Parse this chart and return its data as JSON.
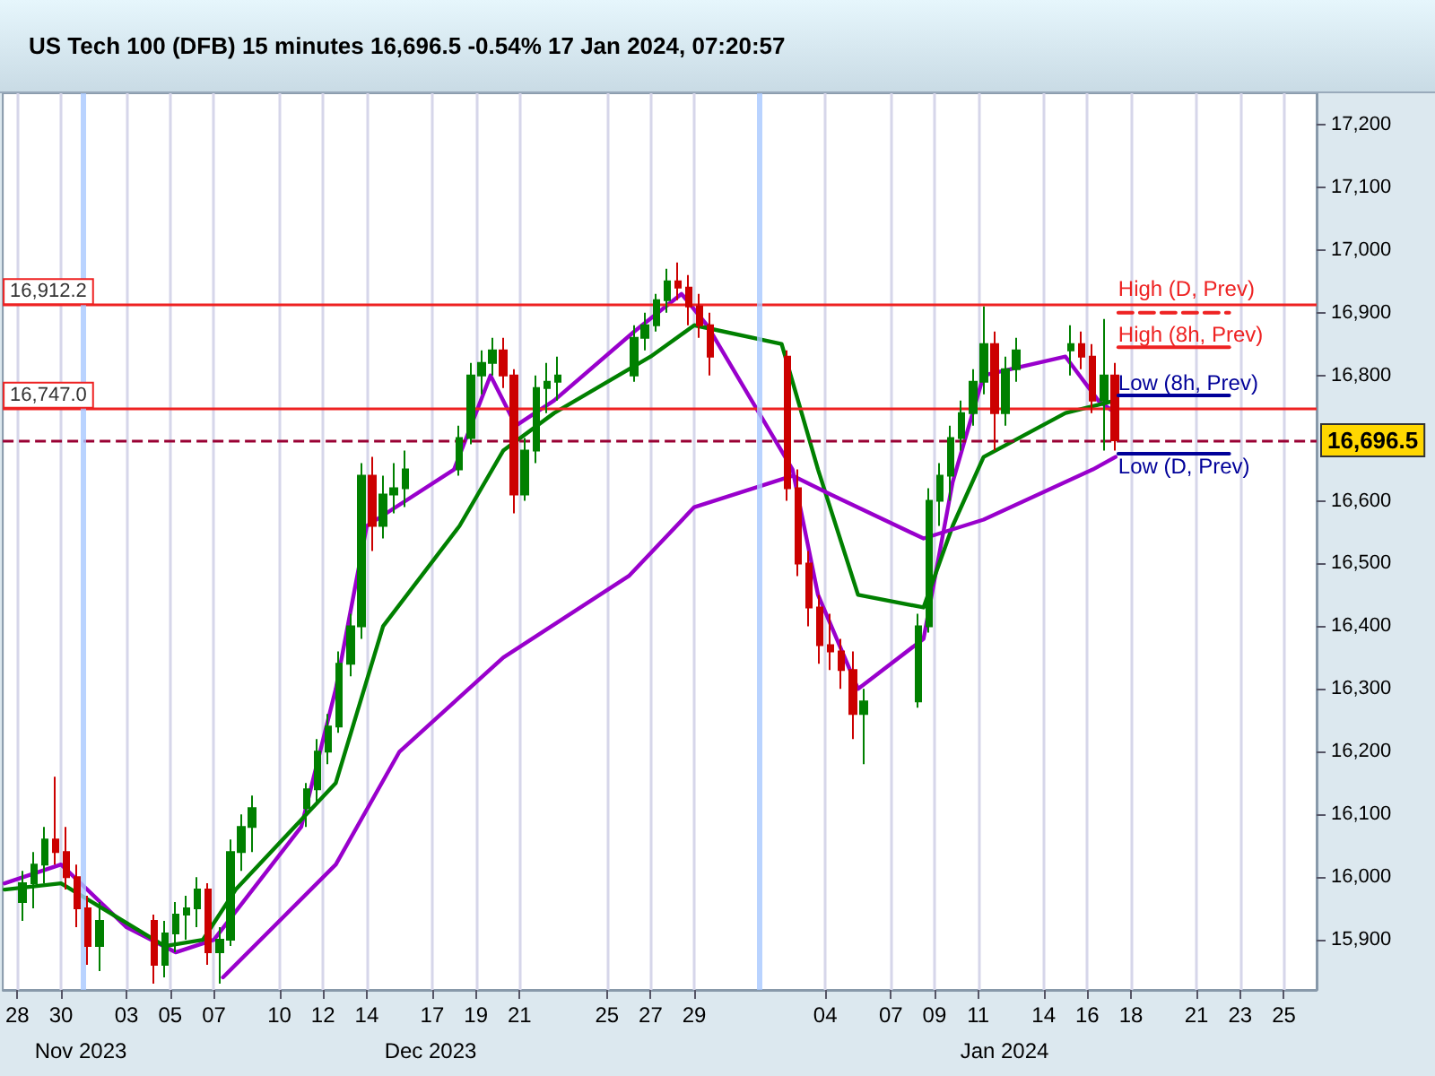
{
  "chart_data": {
    "type": "candlestick",
    "title": "US Tech 100 (DFB) 15 minutes 16,696.5 -0.54% 17 Jan 2024, 07:20:57",
    "x": [
      "2023-11-28T06:00",
      "2023-11-28T18:00",
      "2023-11-29T06:00",
      "2023-11-29T18:00",
      "2023-11-30T06:00",
      "2023-11-30T18:00",
      "2023-12-01T06:00",
      "2023-12-01T18:00",
      "2023-12-04T06:00",
      "2023-12-04T18:00",
      "2023-12-05T06:00",
      "2023-12-05T18:00",
      "2023-12-06T06:00",
      "2023-12-06T18:00",
      "2023-12-07T06:00",
      "2023-12-07T18:00",
      "2023-12-08T06:00",
      "2023-12-08T18:00",
      "2023-12-11T06:00",
      "2023-12-11T18:00",
      "2023-12-12T06:00",
      "2023-12-12T18:00",
      "2023-12-13T06:00",
      "2023-12-13T18:00",
      "2023-12-14T06:00",
      "2023-12-14T18:00",
      "2023-12-15T06:00",
      "2023-12-15T18:00",
      "2023-12-18T06:00",
      "2023-12-18T18:00",
      "2023-12-19T06:00",
      "2023-12-19T18:00",
      "2023-12-20T06:00",
      "2023-12-20T18:00",
      "2023-12-21T06:00",
      "2023-12-21T18:00",
      "2023-12-22T06:00",
      "2023-12-22T18:00",
      "2023-12-26T06:00",
      "2023-12-26T18:00",
      "2023-12-27T06:00",
      "2023-12-27T18:00",
      "2023-12-28T06:00",
      "2023-12-28T18:00",
      "2023-12-29T06:00",
      "2023-12-29T18:00",
      "2024-01-02T06:00",
      "2024-01-02T18:00",
      "2024-01-03T06:00",
      "2024-01-03T18:00",
      "2024-01-04T06:00",
      "2024-01-04T18:00",
      "2024-01-05T06:00",
      "2024-01-05T18:00",
      "2024-01-08T06:00",
      "2024-01-08T18:00",
      "2024-01-09T06:00",
      "2024-01-09T18:00",
      "2024-01-10T06:00",
      "2024-01-10T18:00",
      "2024-01-11T06:00",
      "2024-01-11T18:00",
      "2024-01-12T06:00",
      "2024-01-12T18:00",
      "2024-01-15T06:00",
      "2024-01-15T18:00",
      "2024-01-16T06:00",
      "2024-01-16T18:00",
      "2024-01-17T06:00"
    ],
    "ohlc": [
      [
        15960,
        16010,
        15930,
        15990
      ],
      [
        15990,
        16040,
        15950,
        16020
      ],
      [
        16020,
        16080,
        15990,
        16060
      ],
      [
        16060,
        16160,
        16020,
        16040
      ],
      [
        16040,
        16080,
        15980,
        16000
      ],
      [
        16000,
        16020,
        15920,
        15950
      ],
      [
        15950,
        15970,
        15860,
        15890
      ],
      [
        15890,
        15960,
        15850,
        15930
      ],
      [
        15930,
        15940,
        15830,
        15860
      ],
      [
        15860,
        15930,
        15840,
        15910
      ],
      [
        15910,
        15960,
        15880,
        15940
      ],
      [
        15940,
        15970,
        15900,
        15950
      ],
      [
        15950,
        16000,
        15920,
        15980
      ],
      [
        15980,
        15990,
        15860,
        15880
      ],
      [
        15880,
        15920,
        15830,
        15900
      ],
      [
        15900,
        16060,
        15890,
        16040
      ],
      [
        16040,
        16100,
        16010,
        16080
      ],
      [
        16080,
        16130,
        16040,
        16110
      ],
      [
        16110,
        16150,
        16080,
        16140
      ],
      [
        16140,
        16220,
        16120,
        16200
      ],
      [
        16200,
        16260,
        16180,
        16240
      ],
      [
        16240,
        16360,
        16230,
        16340
      ],
      [
        16340,
        16420,
        16320,
        16400
      ],
      [
        16400,
        16660,
        16380,
        16640
      ],
      [
        16640,
        16670,
        16520,
        16560
      ],
      [
        16560,
        16640,
        16540,
        16610
      ],
      [
        16610,
        16660,
        16580,
        16620
      ],
      [
        16620,
        16680,
        16590,
        16650
      ],
      [
        16650,
        16720,
        16640,
        16700
      ],
      [
        16700,
        16820,
        16690,
        16800
      ],
      [
        16800,
        16840,
        16770,
        16820
      ],
      [
        16820,
        16860,
        16800,
        16840
      ],
      [
        16840,
        16860,
        16780,
        16800
      ],
      [
        16800,
        16810,
        16580,
        16610
      ],
      [
        16610,
        16700,
        16600,
        16680
      ],
      [
        16680,
        16800,
        16660,
        16780
      ],
      [
        16780,
        16820,
        16740,
        16790
      ],
      [
        16790,
        16830,
        16760,
        16800
      ],
      [
        16800,
        16880,
        16790,
        16860
      ],
      [
        16860,
        16900,
        16840,
        16880
      ],
      [
        16880,
        16930,
        16870,
        16920
      ],
      [
        16920,
        16970,
        16900,
        16950
      ],
      [
        16950,
        16980,
        16920,
        16940
      ],
      [
        16940,
        16960,
        16880,
        16910
      ],
      [
        16910,
        16930,
        16860,
        16880
      ],
      [
        16880,
        16900,
        16800,
        16830
      ],
      [
        16830,
        16840,
        16600,
        16620
      ],
      [
        16620,
        16650,
        16480,
        16500
      ],
      [
        16500,
        16520,
        16400,
        16430
      ],
      [
        16430,
        16450,
        16340,
        16370
      ],
      [
        16370,
        16420,
        16330,
        16360
      ],
      [
        16360,
        16380,
        16300,
        16330
      ],
      [
        16330,
        16360,
        16220,
        16260
      ],
      [
        16260,
        16300,
        16180,
        16280
      ],
      [
        16280,
        16420,
        16270,
        16400
      ],
      [
        16400,
        16620,
        16390,
        16600
      ],
      [
        16600,
        16660,
        16560,
        16640
      ],
      [
        16640,
        16720,
        16600,
        16700
      ],
      [
        16700,
        16760,
        16680,
        16740
      ],
      [
        16740,
        16810,
        16720,
        16790
      ],
      [
        16790,
        16910,
        16770,
        16850
      ],
      [
        16850,
        16870,
        16680,
        16740
      ],
      [
        16740,
        16830,
        16720,
        16810
      ],
      [
        16810,
        16860,
        16790,
        16840
      ],
      [
        16840,
        16880,
        16800,
        16850
      ],
      [
        16850,
        16870,
        16810,
        16830
      ],
      [
        16830,
        16850,
        16740,
        16760
      ],
      [
        16760,
        16890,
        16680,
        16800
      ],
      [
        16800,
        16820,
        16680,
        16696.5
      ]
    ],
    "colors": [
      "#008000",
      "#008000",
      "#008000",
      "#cc0000",
      "#cc0000",
      "#cc0000",
      "#cc0000",
      "#008000",
      "#cc0000",
      "#008000",
      "#008000",
      "#008000",
      "#008000",
      "#cc0000",
      "#008000",
      "#008000",
      "#008000",
      "#008000",
      "#008000",
      "#008000",
      "#008000",
      "#008000",
      "#008000",
      "#008000",
      "#cc0000",
      "#008000",
      "#008000",
      "#008000",
      "#008000",
      "#008000",
      "#008000",
      "#008000",
      "#cc0000",
      "#cc0000",
      "#008000",
      "#008000",
      "#008000",
      "#008000",
      "#008000",
      "#008000",
      "#008000",
      "#008000",
      "#cc0000",
      "#cc0000",
      "#cc0000",
      "#cc0000",
      "#cc0000",
      "#cc0000",
      "#cc0000",
      "#cc0000",
      "#cc0000",
      "#cc0000",
      "#cc0000",
      "#008000",
      "#008000",
      "#008000",
      "#008000",
      "#008000",
      "#008000",
      "#008000",
      "#008000",
      "#cc0000",
      "#008000",
      "#008000",
      "#008000",
      "#cc0000",
      "#cc0000",
      "#008000",
      "#cc0000"
    ],
    "series": [
      {
        "type": "line",
        "color": "#9900cc",
        "x": [
          "2023-11-27T10:00",
          "2023-11-30T00:00",
          "2023-12-03T00:00",
          "2023-12-05T06:00",
          "2023-12-07T00:00",
          "2023-12-11T00:00",
          "2023-12-12T14:00",
          "2023-12-14T00:00",
          "2023-12-18T00:00",
          "2023-12-19T16:00",
          "2023-12-20T20:00",
          "2023-12-22T14:00",
          "2023-12-26T06:00",
          "2023-12-28T10:00",
          "2023-12-29T14:00",
          "2024-01-02T12:00",
          "2024-01-03T16:00",
          "2024-01-05T12:00",
          "2024-01-08T12:00",
          "2024-01-09T20:00",
          "2024-01-11T06:00",
          "2024-01-15T00:00",
          "2024-01-16T12:00",
          "2024-01-17T07:00"
        ],
        "values": [
          15990,
          16020,
          15920,
          15880,
          15900,
          16080,
          16300,
          16560,
          16650,
          16800,
          16720,
          16760,
          16870,
          16930,
          16880,
          16650,
          16450,
          16300,
          16380,
          16630,
          16800,
          16830,
          16760,
          16740
        ]
      },
      {
        "type": "line",
        "color": "#008000",
        "x": [
          "2023-11-27T10:00",
          "2023-11-30T00:00",
          "2023-12-04T18:00",
          "2023-12-06T12:00",
          "2023-12-08T00:00",
          "2023-12-12T14:00",
          "2023-12-14T18:00",
          "2023-12-18T06:00",
          "2023-12-20T06:00",
          "2023-12-22T14:00",
          "2023-12-27T00:00",
          "2023-12-29T00:00",
          "2024-01-02T00:00",
          "2024-01-03T16:00",
          "2024-01-05T12:00",
          "2024-01-08T12:00",
          "2024-01-09T20:00",
          "2024-01-11T06:00",
          "2024-01-15T00:00",
          "2024-01-17T07:00"
        ],
        "values": [
          15980,
          15990,
          15890,
          15900,
          15980,
          16150,
          16400,
          16560,
          16680,
          16740,
          16830,
          16880,
          16850,
          16650,
          16450,
          16430,
          16560,
          16670,
          16740,
          16760
        ]
      },
      {
        "type": "line",
        "color": "#9900cc",
        "x": [
          "2023-12-07T10:00",
          "2023-12-12T14:00",
          "2023-12-15T12:00",
          "2023-12-20T06:00",
          "2023-12-26T00:00",
          "2023-12-29T00:00",
          "2024-01-02T12:00",
          "2024-01-04T06:00",
          "2024-01-08T12:00",
          "2024-01-11T06:00",
          "2024-01-16T06:00",
          "2024-01-17T07:00"
        ],
        "values": [
          15840,
          16020,
          16200,
          16350,
          16480,
          16590,
          16640,
          16610,
          16540,
          16570,
          16650,
          16670
        ]
      },
      {
        "type": "line",
        "name": "High (D, Prev)",
        "color": "#ee2222",
        "line_style": "dashed",
        "x": [
          "2024-01-17T10:00",
          "2024-01-22T12:00"
        ],
        "values": [
          16900,
          16900
        ]
      },
      {
        "type": "line",
        "name": "High (8h, Prev)",
        "color": "#ee2222",
        "x": [
          "2024-01-17T10:00",
          "2024-01-22T12:00"
        ],
        "values": [
          16845,
          16845
        ]
      },
      {
        "type": "line",
        "name": "Low (8h, Prev)",
        "color": "#000099",
        "x": [
          "2024-01-17T10:00",
          "2024-01-22T12:00"
        ],
        "values": [
          16768,
          16768
        ]
      },
      {
        "type": "line",
        "name": "Low (D, Prev)",
        "color": "#000099",
        "x": [
          "2024-01-17T10:00",
          "2024-01-22T12:00"
        ],
        "values": [
          16675,
          16675
        ]
      }
    ],
    "xlim": [
      "2023-11-27T08:00",
      "2024-01-26T12:00"
    ],
    "xticks": [
      {
        "value": "2023-11-28",
        "label": "28"
      },
      {
        "value": "2023-11-30",
        "label": "30"
      },
      {
        "value": "2023-12-03",
        "label": "03"
      },
      {
        "value": "2023-12-05",
        "label": "05"
      },
      {
        "value": "2023-12-07",
        "label": "07"
      },
      {
        "value": "2023-12-10",
        "label": "10"
      },
      {
        "value": "2023-12-12",
        "label": "12"
      },
      {
        "value": "2023-12-14",
        "label": "14"
      },
      {
        "value": "2023-12-17",
        "label": "17"
      },
      {
        "value": "2023-12-19",
        "label": "19"
      },
      {
        "value": "2023-12-21",
        "label": "21"
      },
      {
        "value": "2023-12-25",
        "label": "25"
      },
      {
        "value": "2023-12-27",
        "label": "27"
      },
      {
        "value": "2023-12-29",
        "label": "29"
      },
      {
        "value": "2024-01-04",
        "label": "04"
      },
      {
        "value": "2024-01-07",
        "label": "07"
      },
      {
        "value": "2024-01-09",
        "label": "09"
      },
      {
        "value": "2024-01-11",
        "label": "11"
      },
      {
        "value": "2024-01-14",
        "label": "14"
      },
      {
        "value": "2024-01-16",
        "label": "16"
      },
      {
        "value": "2024-01-18",
        "label": "18"
      },
      {
        "value": "2024-01-21",
        "label": "21"
      },
      {
        "value": "2024-01-23",
        "label": "23"
      },
      {
        "value": "2024-01-25",
        "label": "25"
      }
    ],
    "ylim": [
      15820,
      17250
    ],
    "yticks": [
      {
        "value": 15900,
        "label": "15,900"
      },
      {
        "value": 16000,
        "label": "16,000"
      },
      {
        "value": 16100,
        "label": "16,100"
      },
      {
        "value": 16200,
        "label": "16,200"
      },
      {
        "value": 16300,
        "label": "16,300"
      },
      {
        "value": 16400,
        "label": "16,400"
      },
      {
        "value": 16500,
        "label": "16,500"
      },
      {
        "value": 16600,
        "label": "16,600"
      },
      {
        "value": 16800,
        "label": "16,800"
      },
      {
        "value": 16900,
        "label": "16,900"
      },
      {
        "value": 17000,
        "label": "17,000"
      },
      {
        "value": 17100,
        "label": "17,100"
      },
      {
        "value": 17200,
        "label": "17,200"
      }
    ],
    "ref_lines": [
      {
        "axis": "y",
        "value": 16912.2,
        "label": "16,912.2",
        "color": "#ee2222"
      },
      {
        "axis": "y",
        "value": 16747.0,
        "label": "16,747.0",
        "color": "#ee2222"
      },
      {
        "axis": "y",
        "value": 16696.5,
        "label": "16,696.5",
        "color": "#990033",
        "line_style": "dashed"
      },
      {
        "axis": "x",
        "value": "2023-12-01",
        "color": "#a8c8ff"
      },
      {
        "axis": "x",
        "value": "2024-01-01",
        "color": "#a8c8ff"
      }
    ],
    "annotations": [
      "Nov 2023",
      "Dec 2023",
      "Jan 2024"
    ],
    "grid": "x"
  }
}
